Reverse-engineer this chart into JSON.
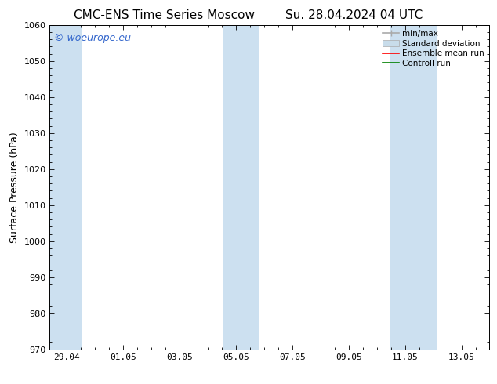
{
  "title": "CMC-ENS Time Series Moscow",
  "title_right": "Su. 28.04.2024 04 UTC",
  "ylabel": "Surface Pressure (hPa)",
  "ylim": [
    970,
    1060
  ],
  "yticks": [
    970,
    980,
    990,
    1000,
    1010,
    1020,
    1030,
    1040,
    1050,
    1060
  ],
  "xtick_labels": [
    "29.04",
    "01.05",
    "03.05",
    "05.05",
    "07.05",
    "09.05",
    "11.05",
    "13.05"
  ],
  "xtick_positions": [
    0,
    2,
    4,
    6,
    8,
    10,
    12,
    14
  ],
  "xlim": [
    -0.6,
    15.0
  ],
  "shaded_bands": [
    {
      "x_start": -0.6,
      "x_end": 0.55
    },
    {
      "x_start": 5.55,
      "x_end": 6.85
    },
    {
      "x_start": 11.45,
      "x_end": 13.15
    }
  ],
  "band_color": "#cce0f0",
  "watermark_text": "© woeurope.eu",
  "watermark_color": "#3366cc",
  "legend_items": [
    {
      "label": "min/max",
      "color": "#aaaaaa",
      "lw": 1.2,
      "style": "solid"
    },
    {
      "label": "Standard deviation",
      "color": "#c8dcea",
      "lw": 8,
      "style": "solid"
    },
    {
      "label": "Ensemble mean run",
      "color": "red",
      "lw": 1.2,
      "style": "solid"
    },
    {
      "label": "Controll run",
      "color": "green",
      "lw": 1.2,
      "style": "solid"
    }
  ],
  "background_color": "#ffffff",
  "plot_bg_color": "#ffffff",
  "spine_color": "#000000",
  "title_fontsize": 11,
  "label_fontsize": 9,
  "tick_fontsize": 8,
  "legend_fontsize": 7.5
}
